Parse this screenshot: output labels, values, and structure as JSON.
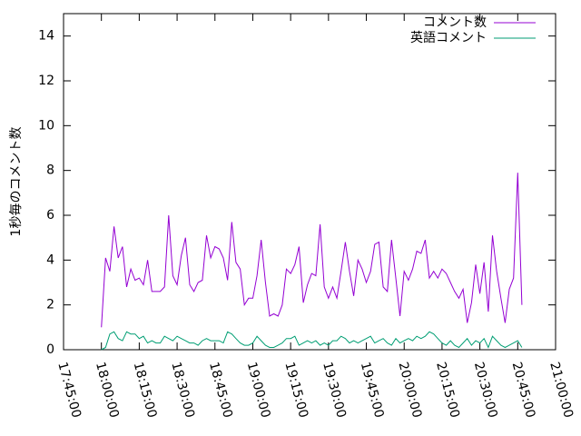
{
  "chart_data": {
    "type": "line",
    "ylabel": "1秒毎のコメント数",
    "x": [
      "18:00:00",
      "18:01:40",
      "18:03:20",
      "18:05:00",
      "18:06:40",
      "18:08:20",
      "18:10:00",
      "18:11:40",
      "18:13:20",
      "18:15:00",
      "18:16:40",
      "18:18:20",
      "18:20:00",
      "18:21:40",
      "18:23:20",
      "18:25:00",
      "18:26:40",
      "18:28:20",
      "18:30:00",
      "18:31:40",
      "18:33:20",
      "18:35:00",
      "18:36:40",
      "18:38:20",
      "18:40:00",
      "18:41:40",
      "18:43:20",
      "18:45:00",
      "18:46:40",
      "18:48:20",
      "18:50:00",
      "18:51:40",
      "18:53:20",
      "18:55:00",
      "18:56:40",
      "18:58:20",
      "19:00:00",
      "19:01:40",
      "19:03:20",
      "19:05:00",
      "19:06:40",
      "19:08:20",
      "19:10:00",
      "19:11:40",
      "19:13:20",
      "19:15:00",
      "19:16:40",
      "19:18:20",
      "19:20:00",
      "19:21:40",
      "19:23:20",
      "19:25:00",
      "19:26:40",
      "19:28:20",
      "19:30:00",
      "19:31:40",
      "19:33:20",
      "19:35:00",
      "19:36:40",
      "19:38:20",
      "19:40:00",
      "19:41:40",
      "19:43:20",
      "19:45:00",
      "19:46:40",
      "19:48:20",
      "19:50:00",
      "19:51:40",
      "19:53:20",
      "19:55:00",
      "19:56:40",
      "19:58:20",
      "20:00:00",
      "20:01:40",
      "20:03:20",
      "20:05:00",
      "20:06:40",
      "20:08:20",
      "20:10:00",
      "20:11:40",
      "20:13:20",
      "20:15:00",
      "20:16:40",
      "20:18:20",
      "20:20:00",
      "20:21:40",
      "20:23:20",
      "20:25:00",
      "20:26:40",
      "20:28:20",
      "20:30:00",
      "20:31:40",
      "20:33:20",
      "20:35:00",
      "20:36:40",
      "20:38:20",
      "20:40:00",
      "20:41:40",
      "20:43:20",
      "20:45:00",
      "20:46:40"
    ],
    "series": [
      {
        "name": "コメント数",
        "color": "#9400d3",
        "values": [
          1.0,
          4.1,
          3.5,
          5.5,
          4.1,
          4.6,
          2.8,
          3.6,
          3.1,
          3.2,
          2.9,
          4.0,
          2.6,
          2.6,
          2.6,
          2.8,
          6.0,
          3.3,
          2.9,
          4.2,
          5.0,
          2.9,
          2.6,
          3.0,
          3.1,
          5.1,
          4.1,
          4.6,
          4.5,
          4.1,
          3.1,
          5.7,
          3.9,
          3.6,
          2.0,
          2.3,
          2.3,
          3.3,
          4.9,
          3.0,
          1.5,
          1.6,
          1.5,
          2.0,
          3.6,
          3.4,
          3.8,
          4.6,
          2.1,
          2.9,
          3.4,
          3.3,
          5.6,
          2.8,
          2.3,
          2.8,
          2.3,
          3.5,
          4.8,
          3.5,
          2.4,
          4.0,
          3.6,
          3.0,
          3.5,
          4.7,
          4.8,
          2.8,
          2.6,
          4.9,
          3.2,
          1.5,
          3.5,
          3.1,
          3.6,
          4.4,
          4.3,
          4.9,
          3.2,
          3.5,
          3.2,
          3.6,
          3.4,
          3.0,
          2.6,
          2.3,
          2.7,
          1.2,
          2.1,
          3.8,
          2.5,
          3.9,
          1.7,
          5.1,
          3.5,
          2.3,
          1.2,
          2.7,
          3.2,
          7.9,
          2.0
        ]
      },
      {
        "name": "英語コメント",
        "color": "#009e73",
        "values": [
          0.0,
          0.1,
          0.7,
          0.8,
          0.5,
          0.4,
          0.8,
          0.7,
          0.7,
          0.5,
          0.6,
          0.3,
          0.4,
          0.3,
          0.3,
          0.6,
          0.5,
          0.4,
          0.6,
          0.5,
          0.4,
          0.3,
          0.3,
          0.2,
          0.4,
          0.5,
          0.4,
          0.4,
          0.4,
          0.3,
          0.8,
          0.7,
          0.5,
          0.3,
          0.2,
          0.2,
          0.3,
          0.6,
          0.4,
          0.2,
          0.1,
          0.1,
          0.2,
          0.3,
          0.5,
          0.5,
          0.6,
          0.2,
          0.3,
          0.4,
          0.3,
          0.4,
          0.2,
          0.3,
          0.2,
          0.4,
          0.4,
          0.6,
          0.5,
          0.3,
          0.4,
          0.3,
          0.4,
          0.5,
          0.6,
          0.3,
          0.4,
          0.5,
          0.3,
          0.2,
          0.5,
          0.3,
          0.4,
          0.5,
          0.4,
          0.6,
          0.5,
          0.6,
          0.8,
          0.7,
          0.5,
          0.3,
          0.2,
          0.4,
          0.2,
          0.1,
          0.3,
          0.5,
          0.2,
          0.4,
          0.3,
          0.5,
          0.1,
          0.6,
          0.4,
          0.2,
          0.1,
          0.2,
          0.3,
          0.4,
          0.1
        ]
      }
    ],
    "xlim": [
      "17:45:00",
      "21:00:00"
    ],
    "xticks": [
      "17:45:00",
      "18:00:00",
      "18:15:00",
      "18:30:00",
      "18:45:00",
      "19:00:00",
      "19:15:00",
      "19:30:00",
      "19:45:00",
      "20:00:00",
      "20:15:00",
      "20:30:00",
      "20:45:00",
      "21:00:00"
    ],
    "ylim": [
      0,
      15
    ],
    "yticks": [
      0,
      2,
      4,
      6,
      8,
      10,
      12,
      14
    ],
    "legend": "top-right",
    "grid": false
  }
}
